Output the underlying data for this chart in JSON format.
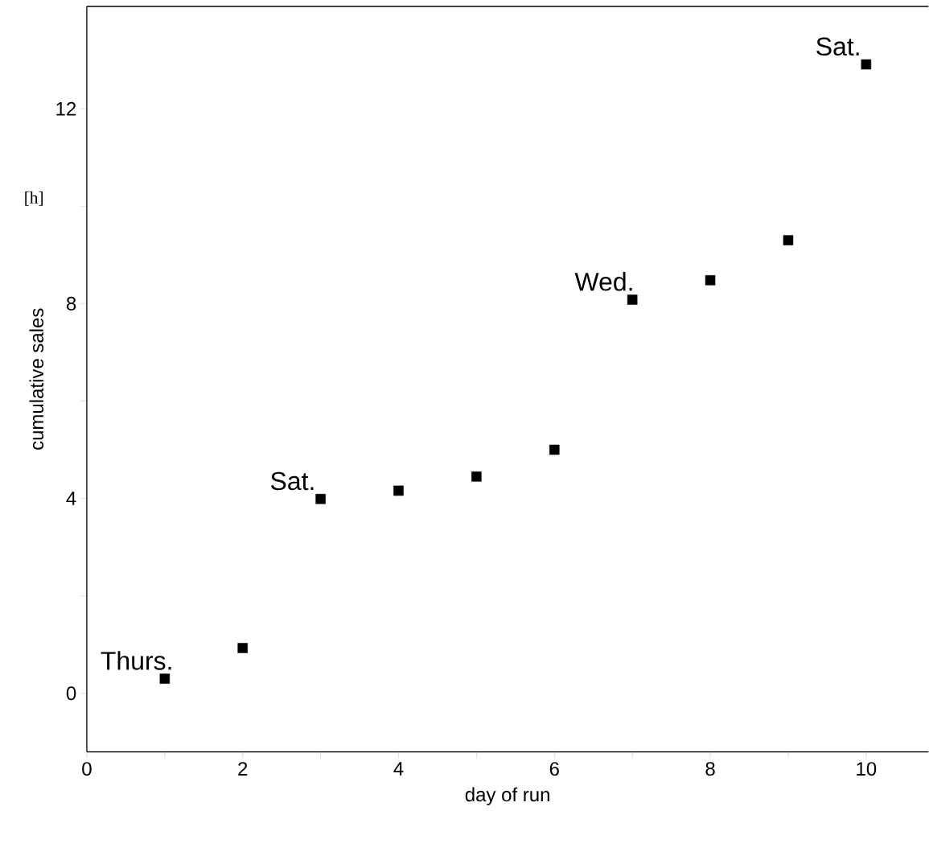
{
  "chart_data": {
    "type": "scatter",
    "xlabel": "day of run",
    "ylabel": "cumulative sales",
    "x": [
      1,
      2,
      3,
      4,
      5,
      6,
      7,
      8,
      9,
      10
    ],
    "series": [
      {
        "color": "#000000",
        "values": [
          0.3,
          0.93,
          3.99,
          4.16,
          4.45,
          5.0,
          8.08,
          8.48,
          9.3,
          12.91
        ]
      }
    ],
    "marker": "square",
    "grid": false,
    "xlim": [
      0,
      10.8
    ],
    "ylim": [
      -1.2,
      14.1
    ],
    "xticks": [
      0,
      {
        "value": 1,
        "label": null
      },
      2,
      {
        "value": 3,
        "label": null
      },
      4,
      {
        "value": 5,
        "label": null
      },
      6,
      {
        "value": 7,
        "label": null
      },
      8,
      {
        "value": 9,
        "label": null
      },
      10
    ],
    "yticks": [
      0,
      {
        "value": 2,
        "label": null
      },
      4,
      {
        "value": 6,
        "label": null
      },
      8,
      {
        "value": 10,
        "label": null
      },
      12
    ],
    "annotations": [
      {
        "text": "Thurs.",
        "x": 1,
        "y": 0.3
      },
      {
        "text": "Sat.",
        "x": 3,
        "y": 3.99
      },
      {
        "text": "Wed.",
        "x": 7,
        "y": 8.08
      },
      {
        "text": "Sat.",
        "x": 10,
        "y": 12.91
      },
      "[h]"
    ]
  }
}
